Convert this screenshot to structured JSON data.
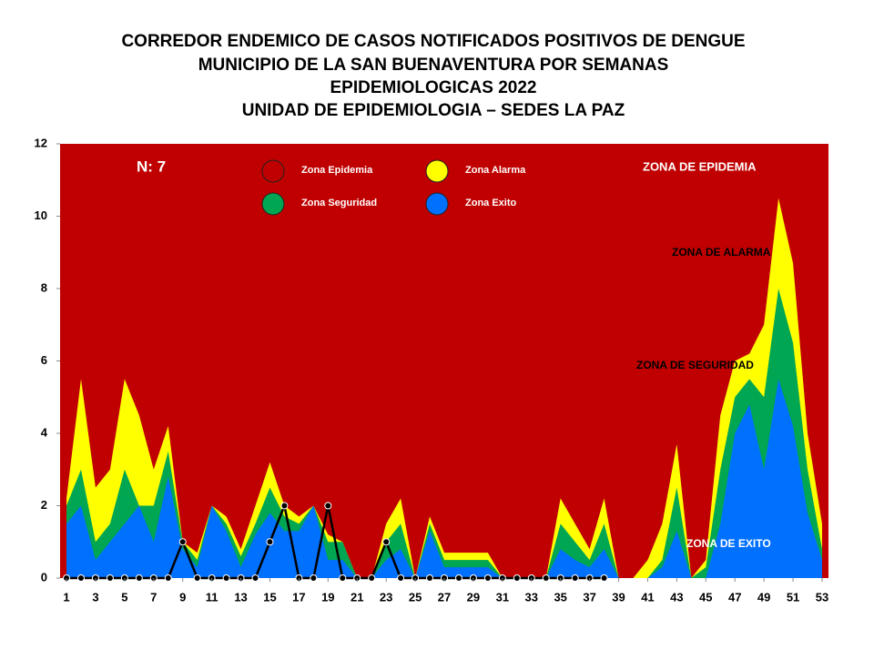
{
  "chart_data": {
    "type": "area",
    "title": [
      "CORREDOR ENDEMICO DE CASOS NOTIFICADOS POSITIVOS DE DENGUE",
      "MUNICIPIO DE LA SAN BUENAVENTURA  POR SEMANAS",
      "EPIDEMIOLOGICAS 2022",
      "UNIDAD DE EPIDEMIOLOGIA – SEDES LA PAZ"
    ],
    "annotations": [
      "N: 7",
      "ZONA DE EPIDEMIA",
      "ZONA DE ALARMA",
      "ZONA DE  SEGURIDAD",
      "ZONA DE  EXITO"
    ],
    "x": [
      1,
      2,
      3,
      4,
      5,
      6,
      7,
      8,
      9,
      10,
      11,
      12,
      13,
      14,
      15,
      16,
      17,
      18,
      19,
      20,
      21,
      22,
      23,
      24,
      25,
      26,
      27,
      28,
      29,
      30,
      31,
      32,
      33,
      34,
      35,
      36,
      37,
      38,
      39,
      40,
      41,
      42,
      43,
      44,
      45,
      46,
      47,
      48,
      49,
      50,
      51,
      52,
      53
    ],
    "xlim": [
      0.56,
      53.44
    ],
    "xticks": [
      1,
      3,
      5,
      7,
      9,
      11,
      13,
      15,
      17,
      19,
      21,
      23,
      25,
      27,
      29,
      31,
      33,
      35,
      37,
      39,
      41,
      43,
      45,
      47,
      49,
      51,
      53
    ],
    "ylim": [
      0,
      12
    ],
    "yticks": [
      0,
      2,
      4,
      6,
      8,
      10,
      12
    ],
    "background_zone": {
      "name": "Zona Epidemia",
      "color": "#c00000"
    },
    "series": [
      {
        "name": "Zona Alarma",
        "color": "#ffff00",
        "values": [
          2.2,
          5.5,
          2.5,
          3,
          5.5,
          4.5,
          3,
          4.2,
          1,
          0.7,
          2,
          1.7,
          0.8,
          2,
          3.2,
          2,
          1.7,
          2,
          1.2,
          1,
          0,
          0,
          1.5,
          2.2,
          0,
          1.7,
          0.7,
          0.7,
          0.7,
          0.7,
          0,
          0,
          0,
          0,
          2.2,
          1.5,
          0.8,
          2.2,
          0,
          0,
          0.5,
          1.5,
          3.7,
          0,
          0.5,
          4.5,
          6,
          6.2,
          7,
          10.5,
          8.7,
          4,
          1.5
        ]
      },
      {
        "name": "Zona Seguridad",
        "color": "#00a651",
        "values": [
          2,
          3,
          1,
          1.5,
          3,
          2,
          2,
          3.5,
          1,
          0.5,
          2,
          1.5,
          0.6,
          1.5,
          2.5,
          1.7,
          1.5,
          2,
          1,
          1,
          0,
          0,
          1,
          1.5,
          0,
          1.5,
          0.5,
          0.5,
          0.5,
          0.5,
          0,
          0,
          0,
          0,
          1.5,
          1,
          0.5,
          1.5,
          0,
          0,
          0,
          0.5,
          2.5,
          0,
          0.3,
          3,
          5,
          5.5,
          5,
          8,
          6.5,
          3,
          0.8
        ]
      },
      {
        "name": "Zona Exito",
        "color": "#0070ff",
        "values": [
          1.5,
          2,
          0.5,
          1,
          1.5,
          2,
          1,
          2.8,
          0.8,
          0.3,
          2,
          1.3,
          0.3,
          1.2,
          1.8,
          1.3,
          1.3,
          2,
          0.5,
          0.5,
          0,
          0,
          0.5,
          0.8,
          0,
          1.3,
          0.3,
          0.3,
          0.3,
          0.3,
          0,
          0,
          0,
          0,
          0.8,
          0.5,
          0.3,
          0.8,
          0,
          0,
          0,
          0.3,
          1.3,
          0,
          0,
          1.5,
          4,
          4.8,
          3,
          5.5,
          4.2,
          1.8,
          0.5
        ]
      }
    ],
    "cases": {
      "color": "#000000",
      "values": [
        0,
        0,
        0,
        0,
        0,
        0,
        0,
        0,
        1,
        0,
        0,
        0,
        0,
        0,
        1,
        2,
        0,
        0,
        2,
        0,
        0,
        0,
        1,
        0,
        0,
        0,
        0,
        0,
        0,
        0,
        0,
        0,
        0,
        0,
        0,
        0,
        0,
        0,
        null,
        null,
        null,
        null,
        null,
        null,
        null,
        null,
        null,
        null,
        null,
        null,
        null,
        null,
        null
      ]
    }
  }
}
